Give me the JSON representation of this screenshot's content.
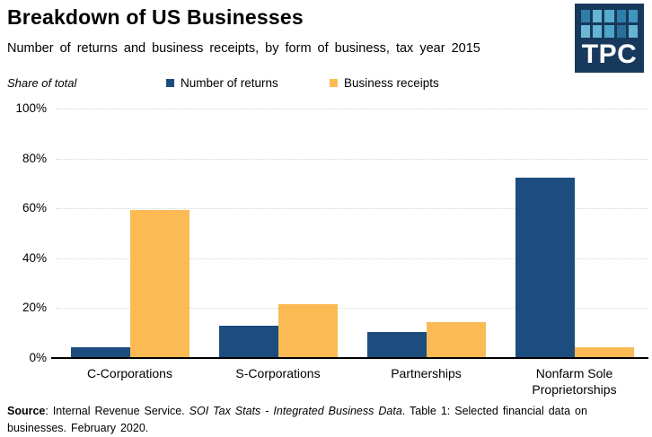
{
  "header": {
    "title": "Breakdown of US Businesses",
    "subtitle": "Number of returns and business receipts,  by form of business, tax year 2015",
    "logo_text": "TPC",
    "logo_bg": "#17395c",
    "logo_squares": [
      "#2f7ea9",
      "#66b4d3",
      "#57abcc",
      "#2f7ea9",
      "#4095bc",
      "#6cb7d5",
      "#66b4d3",
      "#4da5c8",
      "#2b709a",
      "#66b4d3"
    ]
  },
  "legend": {
    "axis_note": "Share of total",
    "items": [
      {
        "label": "Number of returns",
        "color": "#1d4d7e"
      },
      {
        "label": "Business receipts",
        "color": "#fcba55"
      }
    ]
  },
  "chart_data": {
    "type": "bar",
    "title": "Breakdown of US Businesses",
    "subtitle": "Number of returns and business receipts, by form of business, tax year 2015",
    "categories": [
      "C-Corporations",
      "S-Corporations",
      "Partnerships",
      "Nonfarm Sole Proprietorships"
    ],
    "series": [
      {
        "name": "Number of returns",
        "color": "#1d4d7e",
        "values": [
          4.4,
          12.9,
          10.5,
          72.2
        ]
      },
      {
        "name": "Business receipts",
        "color": "#fcba55",
        "values": [
          59.5,
          21.7,
          14.3,
          4.3
        ]
      }
    ],
    "xlabel": "",
    "ylabel": "Share of total",
    "ylim": [
      0,
      100
    ],
    "ytick_values": [
      100,
      80,
      60,
      40,
      20,
      0
    ],
    "ytick_suffix": "%",
    "grid": "horizontal-dotted",
    "legend_position": "top"
  },
  "source": {
    "label": "Source",
    "part1": ": Internal Revenue Service. ",
    "italic": "SOI Tax Stats - Integrated Business Data",
    "part2": ". Table 1: Selected financial data on businesses. February 2020."
  }
}
